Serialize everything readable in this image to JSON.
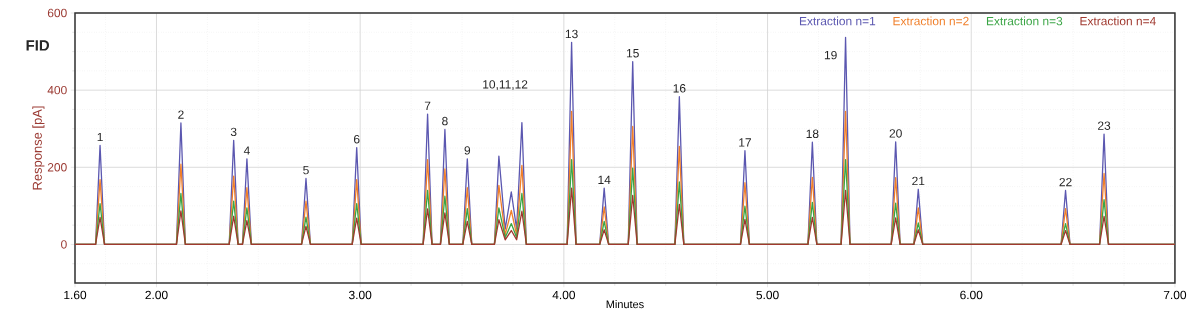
{
  "chart_data": {
    "type": "line",
    "xlabel": "Minutes",
    "ylabel": "Response [pA]",
    "x": [
      1.6,
      1.701,
      1.723,
      1.745,
      2.098,
      2.12,
      2.142,
      2.357,
      2.379,
      2.401,
      2.422,
      2.444,
      2.466,
      2.712,
      2.734,
      2.756,
      2.961,
      2.983,
      3.005,
      3.309,
      3.331,
      3.353,
      3.394,
      3.416,
      3.438,
      3.504,
      3.526,
      3.548,
      3.659,
      3.681,
      3.712,
      3.742,
      3.768,
      3.794,
      3.816,
      4.016,
      4.038,
      4.06,
      4.176,
      4.198,
      4.22,
      4.316,
      4.338,
      4.36,
      4.545,
      4.567,
      4.589,
      4.867,
      4.889,
      4.911,
      5.198,
      5.22,
      5.242,
      5.361,
      5.383,
      5.405,
      5.607,
      5.629,
      5.651,
      5.718,
      5.74,
      5.762,
      6.441,
      6.463,
      6.485,
      6.63,
      6.652,
      6.674,
      7.0
    ],
    "series": [
      {
        "name": "Extraction n=1",
        "color": "#5b57b0",
        "values": [
          0,
          0,
          257,
          0,
          0,
          315,
          0,
          0,
          270,
          0,
          0,
          222,
          0,
          0,
          171,
          0,
          0,
          251,
          0,
          0,
          338,
          0,
          0,
          298,
          0,
          0,
          222,
          0,
          0,
          229,
          40,
          136,
          40,
          316,
          0,
          0,
          524,
          0,
          0,
          146,
          0,
          0,
          474,
          0,
          0,
          383,
          0,
          0,
          243,
          0,
          0,
          265,
          0,
          0,
          537,
          0,
          0,
          266,
          0,
          0,
          143,
          0,
          0,
          140,
          0,
          0,
          286,
          0,
          0
        ]
      },
      {
        "name": "Extraction n=2",
        "color": "#f07f2a",
        "values": [
          0,
          0,
          168,
          0,
          0,
          208,
          0,
          0,
          177,
          0,
          0,
          147,
          0,
          0,
          112,
          0,
          0,
          168,
          0,
          0,
          220,
          0,
          0,
          196,
          0,
          0,
          147,
          0,
          0,
          153,
          25,
          88,
          25,
          205,
          0,
          0,
          345,
          0,
          0,
          97,
          0,
          0,
          306,
          0,
          0,
          254,
          0,
          0,
          160,
          0,
          0,
          174,
          0,
          0,
          345,
          0,
          0,
          173,
          0,
          0,
          95,
          0,
          0,
          93,
          0,
          0,
          184,
          0,
          0
        ]
      },
      {
        "name": "Extraction n=3",
        "color": "#3aa545",
        "values": [
          0,
          0,
          106,
          0,
          0,
          132,
          0,
          0,
          112,
          0,
          0,
          95,
          0,
          0,
          71,
          0,
          0,
          106,
          0,
          0,
          140,
          0,
          0,
          125,
          0,
          0,
          93,
          0,
          0,
          95,
          18,
          54,
          18,
          132,
          0,
          0,
          220,
          0,
          0,
          60,
          0,
          0,
          198,
          0,
          0,
          162,
          0,
          0,
          99,
          0,
          0,
          109,
          0,
          0,
          220,
          0,
          0,
          107,
          0,
          0,
          56,
          0,
          0,
          54,
          0,
          0,
          116,
          0,
          0
        ]
      },
      {
        "name": "Extraction n=4",
        "color": "#a0392f",
        "values": [
          0,
          0,
          70,
          0,
          0,
          87,
          0,
          0,
          73,
          0,
          0,
          62,
          0,
          0,
          47,
          0,
          0,
          68,
          0,
          0,
          92,
          0,
          0,
          82,
          0,
          0,
          60,
          0,
          0,
          64,
          12,
          36,
          12,
          86,
          0,
          0,
          146,
          0,
          0,
          38,
          0,
          0,
          127,
          0,
          0,
          104,
          0,
          0,
          65,
          0,
          0,
          70,
          0,
          0,
          140,
          0,
          0,
          69,
          0,
          0,
          38,
          0,
          0,
          36,
          0,
          0,
          73,
          0,
          0
        ]
      }
    ],
    "xlim": [
      1.6,
      7.0
    ],
    "ylim": [
      -100,
      600
    ],
    "xticks": [
      {
        "value": 1.6,
        "label": "1.60"
      },
      {
        "value": 1.75,
        "label": null
      },
      {
        "value": 2,
        "label": "2.00"
      },
      {
        "value": 2.25,
        "label": null
      },
      {
        "value": 2.5,
        "label": null
      },
      {
        "value": 2.75,
        "label": null
      },
      {
        "value": 3,
        "label": "3.00"
      },
      {
        "value": 3.25,
        "label": null
      },
      {
        "value": 3.5,
        "label": null
      },
      {
        "value": 3.75,
        "label": null
      },
      {
        "value": 4,
        "label": "4.00"
      },
      {
        "value": 4.25,
        "label": null
      },
      {
        "value": 4.5,
        "label": null
      },
      {
        "value": 4.75,
        "label": null
      },
      {
        "value": 5,
        "label": "5.00"
      },
      {
        "value": 5.25,
        "label": null
      },
      {
        "value": 5.5,
        "label": null
      },
      {
        "value": 5.75,
        "label": null
      },
      {
        "value": 6,
        "label": "6.00"
      },
      {
        "value": 6.25,
        "label": null
      },
      {
        "value": 6.5,
        "label": null
      },
      {
        "value": 6.75,
        "label": null
      },
      {
        "value": 7,
        "label": "7.00"
      }
    ],
    "yticks": [
      {
        "value": -50,
        "label": null
      },
      0,
      {
        "value": 50,
        "label": null
      },
      {
        "value": 100,
        "label": null
      },
      {
        "value": 150,
        "label": null
      },
      200,
      {
        "value": 250,
        "label": null
      },
      {
        "value": 300,
        "label": null
      },
      {
        "value": 350,
        "label": null
      },
      400,
      {
        "value": 450,
        "label": null
      },
      {
        "value": 500,
        "label": null
      },
      {
        "value": 550,
        "label": null
      },
      600
    ],
    "grid": true,
    "legend": "top right",
    "marker": "none",
    "line_style": "solid",
    "annotations": [
      "FID",
      {
        "text": "1",
        "x": 1.723,
        "y": 257
      },
      {
        "text": "2",
        "x": 2.12,
        "y": 315
      },
      {
        "text": "3",
        "x": 2.379,
        "y": 270
      },
      {
        "text": "4",
        "x": 2.444,
        "y": 222
      },
      {
        "text": "5",
        "x": 2.734,
        "y": 171
      },
      {
        "text": "6",
        "x": 2.983,
        "y": 251
      },
      {
        "text": "7",
        "x": 3.331,
        "y": 338
      },
      {
        "text": "8",
        "x": 3.416,
        "y": 298
      },
      {
        "text": "9",
        "x": 3.526,
        "y": 222
      },
      "10,11,12",
      {
        "text": "13",
        "x": 4.038,
        "y": 524
      },
      {
        "text": "14",
        "x": 4.198,
        "y": 146
      },
      {
        "text": "15",
        "x": 4.338,
        "y": 474
      },
      {
        "text": "16",
        "x": 4.567,
        "y": 383
      },
      {
        "text": "17",
        "x": 4.889,
        "y": 243
      },
      {
        "text": "18",
        "x": 5.22,
        "y": 265
      },
      "19",
      {
        "text": "20",
        "x": 5.629,
        "y": 266
      },
      {
        "text": "21",
        "x": 5.74,
        "y": 143
      },
      {
        "text": "22",
        "x": 6.463,
        "y": 140
      },
      {
        "text": "23",
        "x": 6.652,
        "y": 286
      }
    ]
  }
}
